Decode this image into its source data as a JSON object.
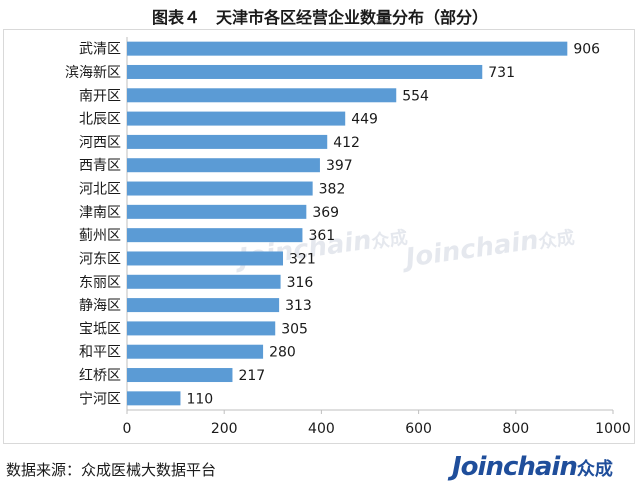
{
  "title": "图表４　天津市各区经营企业数量分布（部分）",
  "source": "数据来源：众成医械大数据平台",
  "brand": {
    "latin": "Joinchain",
    "cn": "众成"
  },
  "watermark": {
    "latin": "Joinchain",
    "cn": "众成"
  },
  "colors": {
    "bar": "#5b9bd5",
    "axis": "#bfbfbf",
    "text": "#1a1a1a"
  },
  "chart_data": {
    "type": "bar",
    "orientation": "horizontal",
    "categories": [
      "武清区",
      "滨海新区",
      "南开区",
      "北辰区",
      "河西区",
      "西青区",
      "河北区",
      "津南区",
      "蓟州区",
      "河东区",
      "东丽区",
      "静海区",
      "宝坻区",
      "和平区",
      "红桥区",
      "宁河区"
    ],
    "values": [
      906,
      731,
      554,
      449,
      412,
      397,
      382,
      369,
      361,
      321,
      316,
      313,
      305,
      280,
      217,
      110
    ],
    "xlim": [
      0,
      1000
    ],
    "xticks": [
      0,
      200,
      400,
      600,
      800,
      1000
    ],
    "grid": false,
    "data_labels": true
  }
}
